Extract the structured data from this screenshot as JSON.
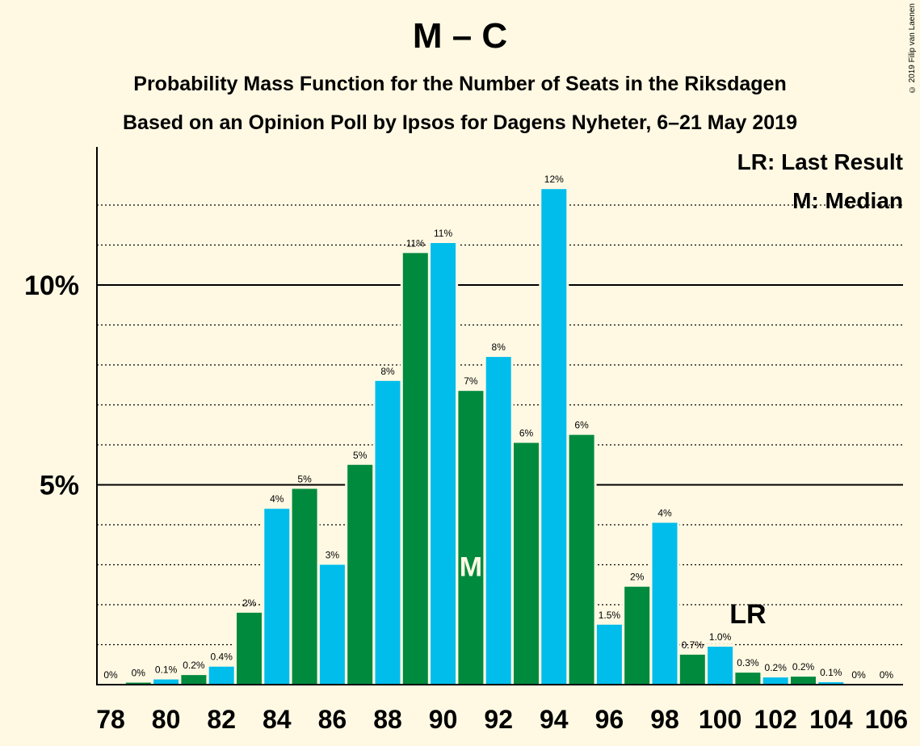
{
  "chart_data": {
    "type": "bar",
    "title": "M – C",
    "subtitle": "Probability Mass Function for the Number of Seats in the Riksdagen",
    "subtitle2": "Based on an Opinion Poll by Ipsos for Dagens Nyheter, 6–21 May 2019",
    "copyright": "© 2019 Filip van Laenen",
    "x": [
      78,
      79,
      80,
      81,
      82,
      83,
      84,
      85,
      86,
      87,
      88,
      89,
      90,
      91,
      92,
      93,
      94,
      95,
      96,
      97,
      98,
      99,
      100,
      101,
      102,
      103,
      104,
      105,
      106
    ],
    "values": [
      0.0,
      0.05,
      0.13,
      0.24,
      0.45,
      1.8,
      4.4,
      4.9,
      3.0,
      5.5,
      7.6,
      10.8,
      11.05,
      7.35,
      8.2,
      6.05,
      12.4,
      6.25,
      1.5,
      2.45,
      4.05,
      0.75,
      0.95,
      0.3,
      0.18,
      0.2,
      0.06,
      0.0,
      0.0
    ],
    "value_labels": [
      "0%",
      "0%",
      "0.1%",
      "0.2%",
      "0.4%",
      "2%",
      "4%",
      "5%",
      "3%",
      "5%",
      "8%",
      "11%",
      "11%",
      "7%",
      "8%",
      "6%",
      "12%",
      "6%",
      "1.5%",
      "2%",
      "4%",
      "0.7%",
      "1.0%",
      "0.3%",
      "0.2%",
      "0.2%",
      "0.1%",
      "0%",
      "0%"
    ],
    "x_tick_labels": [
      "78",
      "80",
      "82",
      "84",
      "86",
      "88",
      "90",
      "92",
      "94",
      "96",
      "98",
      "100",
      "102",
      "104",
      "106"
    ],
    "y_tick_labels": [
      "5%",
      "10%"
    ],
    "ylim": [
      0,
      13.5
    ],
    "median_seat": 91,
    "median_marker": "M",
    "last_result_seat": 101,
    "last_result_marker": "LR",
    "legend": [
      "LR: Last Result",
      "M: Median"
    ],
    "colors": {
      "blue": "#00BDEB",
      "green": "#008A3E",
      "background": "#FFF9E3"
    }
  }
}
